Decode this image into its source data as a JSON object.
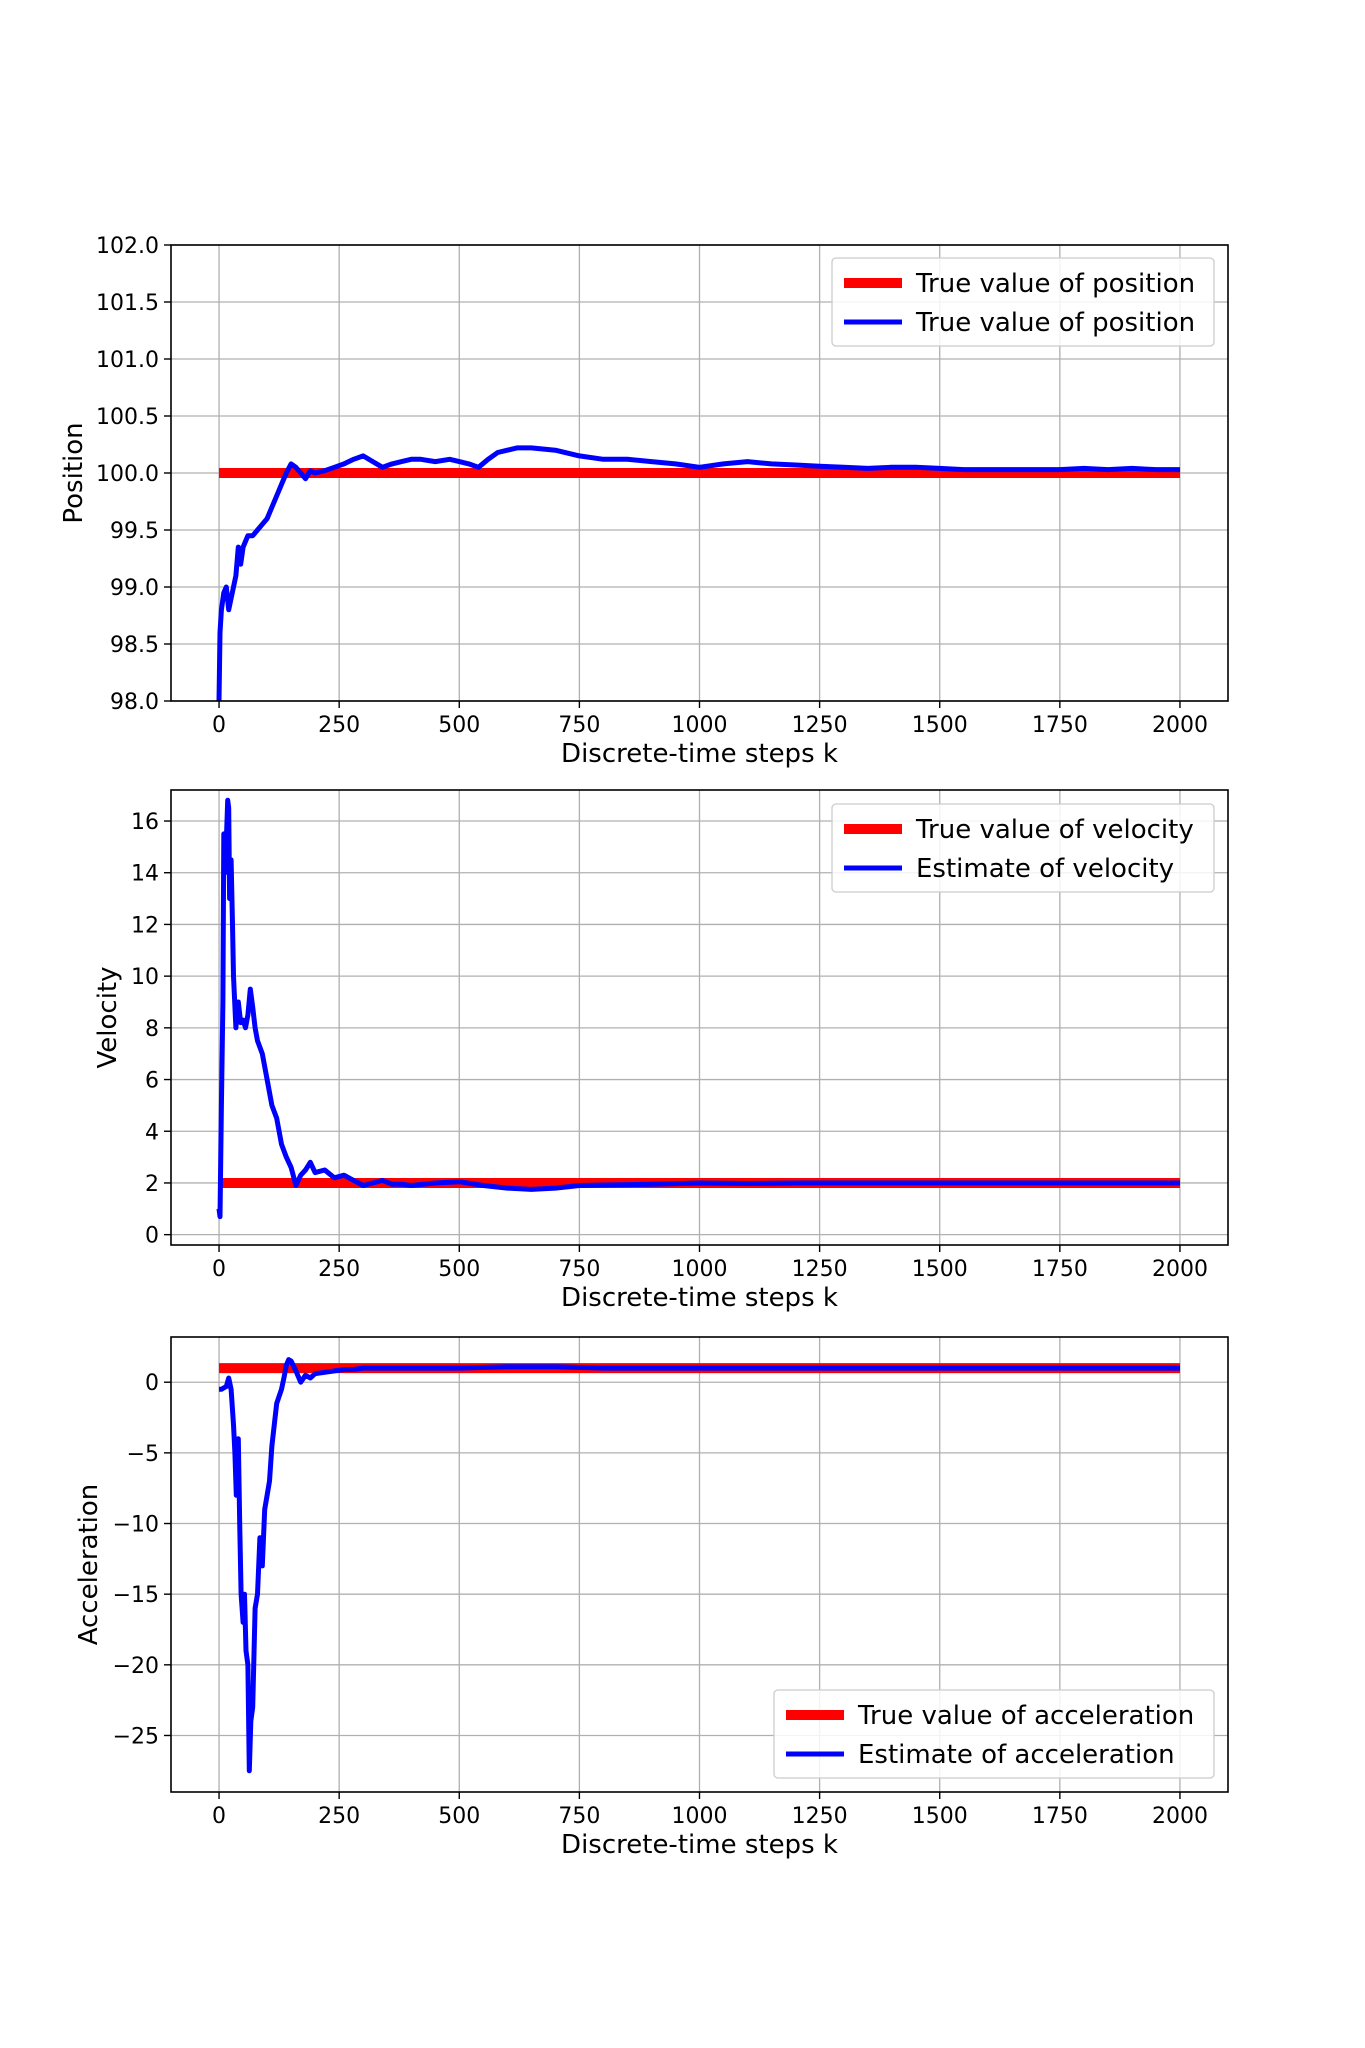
{
  "chart_data": [
    {
      "type": "line",
      "xlabel": "Discrete-time steps k",
      "ylabel": "Position",
      "xlim": [
        -100,
        2100
      ],
      "ylim": [
        98.0,
        102.0
      ],
      "xticks": [
        "0",
        "250",
        "500",
        "750",
        "1000",
        "1250",
        "1500",
        "1750",
        "2000"
      ],
      "yticks": [
        "98.0",
        "98.5",
        "99.0",
        "99.5",
        "100.0",
        "100.5",
        "101.0",
        "101.5",
        "102.0"
      ],
      "legend_position": "top-right",
      "series": [
        {
          "name": "True value of position",
          "color": "#ff0000",
          "x": [
            0,
            2000
          ],
          "y": [
            100.0,
            100.0
          ]
        },
        {
          "name": "True value of position",
          "color": "#0000ff",
          "x": [
            0,
            2,
            5,
            10,
            15,
            20,
            25,
            30,
            35,
            40,
            45,
            50,
            55,
            60,
            70,
            80,
            90,
            100,
            110,
            120,
            130,
            140,
            150,
            160,
            170,
            180,
            190,
            200,
            220,
            240,
            260,
            280,
            300,
            320,
            340,
            360,
            380,
            400,
            420,
            450,
            480,
            500,
            520,
            540,
            560,
            580,
            600,
            620,
            650,
            700,
            750,
            800,
            850,
            900,
            950,
            1000,
            1050,
            1100,
            1150,
            1200,
            1250,
            1300,
            1350,
            1400,
            1450,
            1500,
            1550,
            1600,
            1650,
            1700,
            1750,
            1800,
            1850,
            1900,
            1950,
            2000
          ],
          "y": [
            98.0,
            98.6,
            98.8,
            98.95,
            99.0,
            98.8,
            98.9,
            99.0,
            99.1,
            99.35,
            99.2,
            99.35,
            99.4,
            99.45,
            99.45,
            99.5,
            99.55,
            99.6,
            99.7,
            99.8,
            99.9,
            100.0,
            100.08,
            100.05,
            100.0,
            99.95,
            100.02,
            100.0,
            100.02,
            100.05,
            100.08,
            100.12,
            100.15,
            100.1,
            100.05,
            100.08,
            100.1,
            100.12,
            100.12,
            100.1,
            100.12,
            100.1,
            100.08,
            100.05,
            100.12,
            100.18,
            100.2,
            100.22,
            100.22,
            100.2,
            100.15,
            100.12,
            100.12,
            100.1,
            100.08,
            100.05,
            100.08,
            100.1,
            100.08,
            100.07,
            100.06,
            100.05,
            100.04,
            100.05,
            100.05,
            100.04,
            100.03,
            100.03,
            100.03,
            100.03,
            100.03,
            100.04,
            100.03,
            100.04,
            100.03,
            100.03
          ]
        }
      ]
    },
    {
      "type": "line",
      "xlabel": "Discrete-time steps k",
      "ylabel": "Velocity",
      "xlim": [
        -100,
        2100
      ],
      "ylim": [
        -0.4,
        17.2
      ],
      "xticks": [
        "0",
        "250",
        "500",
        "750",
        "1000",
        "1250",
        "1500",
        "1750",
        "2000"
      ],
      "yticks": [
        "0",
        "2",
        "4",
        "6",
        "8",
        "10",
        "12",
        "14",
        "16"
      ],
      "legend_position": "top-right",
      "series": [
        {
          "name": "True value of velocity",
          "color": "#ff0000",
          "x": [
            0,
            2000
          ],
          "y": [
            2.0,
            2.0
          ]
        },
        {
          "name": "Estimate of velocity",
          "color": "#0000ff",
          "x": [
            0,
            2,
            5,
            8,
            10,
            12,
            15,
            18,
            20,
            22,
            25,
            28,
            30,
            35,
            40,
            45,
            50,
            55,
            60,
            65,
            70,
            75,
            80,
            90,
            100,
            110,
            120,
            130,
            140,
            150,
            160,
            170,
            180,
            190,
            200,
            220,
            240,
            260,
            280,
            300,
            320,
            340,
            360,
            380,
            400,
            450,
            500,
            550,
            600,
            650,
            700,
            750,
            800,
            900,
            1000,
            1100,
            1200,
            1300,
            1400,
            1500,
            1600,
            1700,
            1800,
            1900,
            2000
          ],
          "y": [
            1.0,
            0.7,
            5.0,
            9.0,
            15.5,
            14.0,
            15.2,
            16.8,
            16.5,
            13.0,
            14.5,
            12.0,
            10.0,
            8.0,
            9.0,
            8.2,
            8.3,
            8.0,
            8.5,
            9.5,
            8.8,
            8.0,
            7.5,
            7.0,
            6.0,
            5.0,
            4.5,
            3.5,
            3.0,
            2.6,
            1.9,
            2.3,
            2.5,
            2.8,
            2.4,
            2.5,
            2.2,
            2.3,
            2.1,
            1.9,
            2.0,
            2.1,
            1.95,
            1.95,
            1.9,
            2.0,
            2.05,
            1.9,
            1.8,
            1.75,
            1.8,
            1.9,
            1.92,
            1.95,
            2.0,
            1.98,
            2.0,
            2.0,
            2.0,
            2.0,
            2.0,
            2.0,
            2.0,
            2.0,
            2.0
          ]
        }
      ]
    },
    {
      "type": "line",
      "xlabel": "Discrete-time steps k",
      "ylabel": "Acceleration",
      "xlim": [
        -100,
        2100
      ],
      "ylim": [
        -29.0,
        3.2
      ],
      "xticks": [
        "0",
        "250",
        "500",
        "750",
        "1000",
        "1250",
        "1500",
        "1750",
        "2000"
      ],
      "yticks": [
        "0",
        "−5",
        "−10",
        "−15",
        "−20",
        "−25"
      ],
      "legend_position": "bottom-right",
      "series": [
        {
          "name": "True value of acceleration",
          "color": "#ff0000",
          "x": [
            0,
            2000
          ],
          "y": [
            1.0,
            1.0
          ]
        },
        {
          "name": "Estimate of acceleration",
          "color": "#0000ff",
          "x": [
            0,
            5,
            10,
            15,
            20,
            25,
            30,
            33,
            36,
            40,
            43,
            46,
            50,
            53,
            56,
            60,
            63,
            66,
            70,
            75,
            80,
            85,
            90,
            95,
            100,
            105,
            110,
            115,
            120,
            125,
            130,
            135,
            140,
            145,
            150,
            160,
            170,
            180,
            190,
            200,
            220,
            240,
            260,
            280,
            300,
            350,
            400,
            500,
            600,
            700,
            800,
            1000,
            1200,
            1400,
            1600,
            1800,
            2000
          ],
          "y": [
            -0.5,
            -0.5,
            -0.4,
            -0.3,
            0.3,
            -0.5,
            -3.0,
            -5.0,
            -8.0,
            -4.0,
            -10.0,
            -15.0,
            -17.0,
            -15.0,
            -19.0,
            -20.0,
            -27.5,
            -24.0,
            -23.0,
            -16.0,
            -15.0,
            -11.0,
            -13.0,
            -9.0,
            -8.0,
            -7.0,
            -4.5,
            -3.0,
            -1.5,
            -1.0,
            -0.5,
            0.3,
            1.2,
            1.6,
            1.5,
            0.8,
            0.0,
            0.5,
            0.3,
            0.6,
            0.7,
            0.8,
            0.9,
            0.9,
            1.0,
            1.0,
            1.0,
            1.0,
            1.1,
            1.1,
            1.0,
            1.0,
            1.0,
            1.0,
            1.0,
            1.0,
            1.0
          ]
        }
      ]
    }
  ]
}
